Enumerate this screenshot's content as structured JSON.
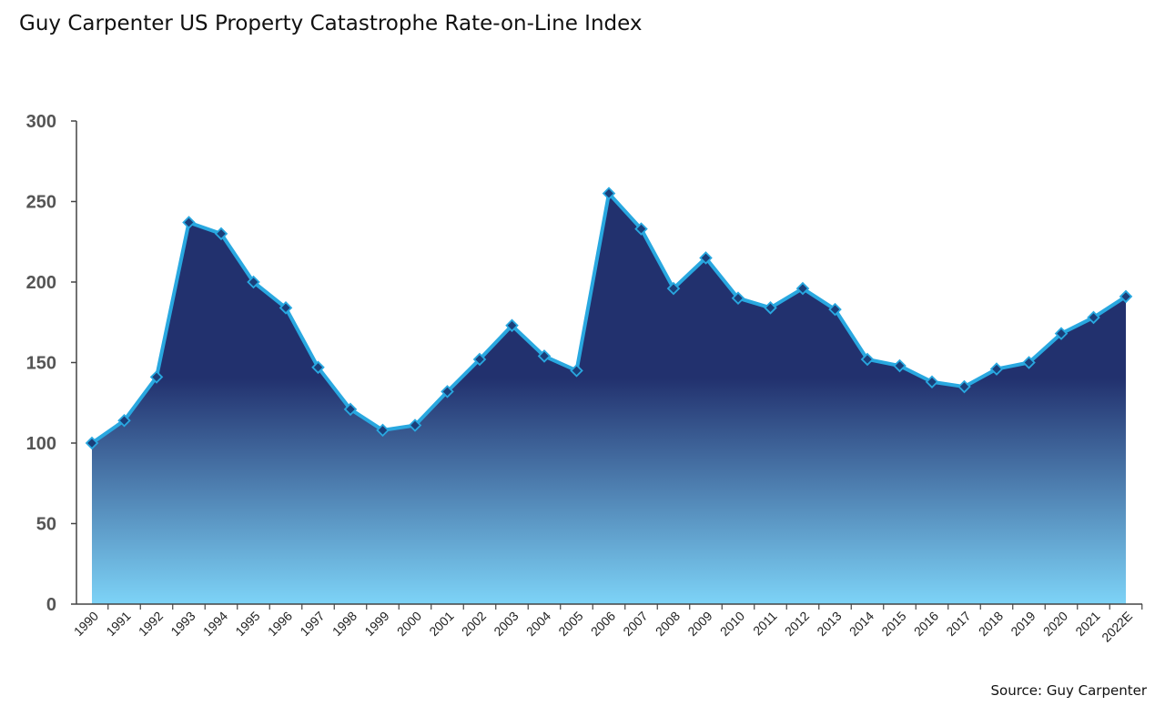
{
  "chart_data": {
    "type": "area",
    "title": "Guy Carpenter US Property Catastrophe Rate-on-Line Index",
    "source": "Source: Guy Carpenter",
    "xlabel": "",
    "ylabel": "",
    "ylim": [
      0,
      300
    ],
    "yticks": [
      0,
      50,
      100,
      150,
      200,
      250,
      300
    ],
    "grid": false,
    "legend": "none",
    "categories": [
      "1990",
      "1991",
      "1992",
      "1993",
      "1994",
      "1995",
      "1996",
      "1997",
      "1998",
      "1999",
      "2000",
      "2001",
      "2002",
      "2003",
      "2004",
      "2005",
      "2006",
      "2007",
      "2008",
      "2009",
      "2010",
      "2011",
      "2012",
      "2013",
      "2014",
      "2015",
      "2016",
      "2017",
      "2018",
      "2019",
      "2020",
      "2021",
      "2022E"
    ],
    "series": [
      {
        "values": [
          100,
          114,
          141,
          237,
          230,
          200,
          184,
          147,
          121,
          108,
          111,
          132,
          152,
          173,
          154,
          145,
          255,
          233,
          196,
          215,
          190,
          184,
          196,
          183,
          152,
          148,
          138,
          135,
          146,
          150,
          168,
          178,
          191
        ],
        "line_color": "#29a8e0",
        "fill_top_color": "#22316e",
        "fill_bottom_color": "#7dd3f7",
        "marker": "diamond",
        "marker_color": "#1b3f7a"
      }
    ]
  }
}
